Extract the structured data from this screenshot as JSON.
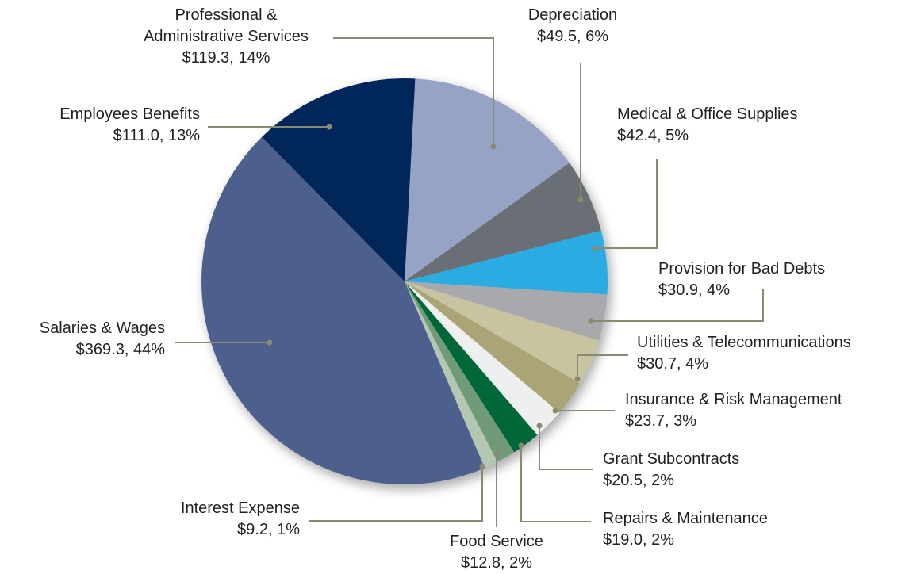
{
  "chart_data": {
    "type": "pie",
    "categories": [
      "Professional & Administrative Services",
      "Depreciation",
      "Medical & Office Supplies",
      "Provision for Bad Debts",
      "Utilities & Telecommunications",
      "Insurance & Risk Management",
      "Grant Subcontracts",
      "Repairs & Maintenance",
      "Food Service",
      "Interest Expense",
      "Salaries & Wages",
      "Employees Benefits"
    ],
    "values": [
      119.3,
      49.5,
      42.4,
      30.9,
      30.7,
      23.7,
      20.5,
      19.0,
      12.8,
      9.2,
      369.3,
      111.0
    ],
    "value_labels": [
      "$119.3, 14%",
      "$49.5, 6%",
      "$42.4, 5%",
      "$30.9, 4%",
      "$30.7, 4%",
      "$23.7, 3%",
      "$20.5, 2%",
      "$19.0, 2%",
      "$12.8, 2%",
      "$9.2, 1%",
      "$369.3, 44%",
      "$111.0, 13%"
    ],
    "colors": [
      "#97a3c4",
      "#6b6e75",
      "#29abe2",
      "#a7a9ad",
      "#c9c4a0",
      "#aba477",
      "#eef0f0",
      "#006838",
      "#6f9a78",
      "#b3c7b3",
      "#4e5f8c",
      "#03275a"
    ]
  }
}
